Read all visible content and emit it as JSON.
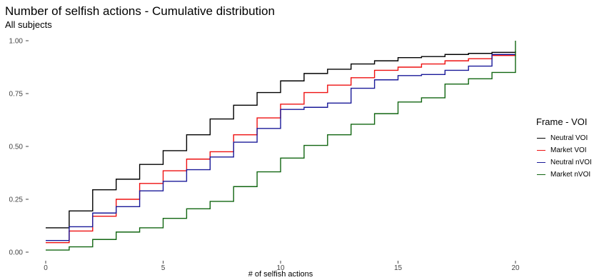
{
  "chart_data": {
    "type": "line",
    "step": true,
    "title": "Number of selfish actions - Cumulative distribution",
    "subtitle": "All subjects",
    "xlabel": "# of selfish actions",
    "ylabel": "",
    "xlim": [
      0,
      20
    ],
    "ylim": [
      0,
      1
    ],
    "x_ticks": [
      0,
      5,
      10,
      15,
      20
    ],
    "y_ticks": [
      0,
      0.25,
      0.5,
      0.75,
      1
    ],
    "x_tick_labels": [
      "0",
      "5",
      "10",
      "15",
      "20"
    ],
    "y_tick_labels": [
      "0.00",
      "0.25",
      "0.50",
      "0.75",
      "1.00"
    ],
    "grid": false,
    "legend_title": "Frame - VOI",
    "legend_position": "right",
    "x": [
      0,
      1,
      2,
      3,
      4,
      5,
      6,
      7,
      8,
      9,
      10,
      11,
      12,
      13,
      14,
      15,
      16,
      17,
      18,
      19,
      20
    ],
    "series": [
      {
        "name": "Neutral VOI",
        "color": "#000000",
        "values": [
          0.115,
          0.195,
          0.295,
          0.345,
          0.415,
          0.48,
          0.555,
          0.63,
          0.695,
          0.755,
          0.81,
          0.845,
          0.865,
          0.89,
          0.905,
          0.92,
          0.925,
          0.935,
          0.94,
          0.945,
          0.95
        ]
      },
      {
        "name": "Market VOI",
        "color": "#ee1111",
        "values": [
          0.045,
          0.1,
          0.17,
          0.25,
          0.325,
          0.385,
          0.44,
          0.475,
          0.555,
          0.635,
          0.7,
          0.755,
          0.79,
          0.825,
          0.86,
          0.875,
          0.89,
          0.905,
          0.915,
          0.93,
          0.935
        ]
      },
      {
        "name": "Neutral nVOI",
        "color": "#1a1a99",
        "values": [
          0.055,
          0.12,
          0.185,
          0.215,
          0.29,
          0.335,
          0.39,
          0.45,
          0.52,
          0.585,
          0.675,
          0.685,
          0.705,
          0.775,
          0.815,
          0.835,
          0.84,
          0.86,
          0.88,
          0.935,
          0.935
        ]
      },
      {
        "name": "Market nVOI",
        "color": "#116611",
        "values": [
          0.01,
          0.025,
          0.06,
          0.095,
          0.115,
          0.16,
          0.205,
          0.24,
          0.31,
          0.38,
          0.445,
          0.505,
          0.555,
          0.605,
          0.655,
          0.71,
          0.73,
          0.795,
          0.82,
          0.85,
          1.0
        ]
      }
    ]
  }
}
